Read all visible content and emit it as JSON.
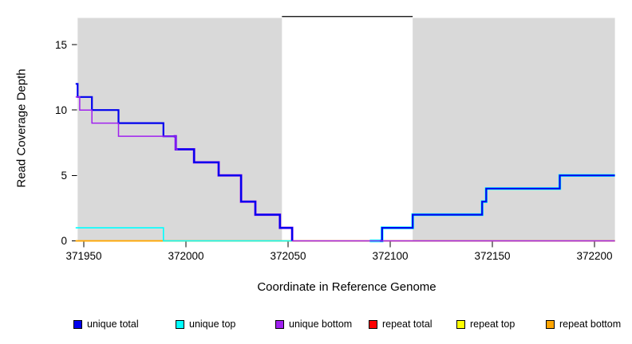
{
  "y_axis": {
    "label": "Read Coverage Depth",
    "ticks": [
      0,
      5,
      10,
      15
    ]
  },
  "x_axis": {
    "label": "Coordinate in Reference Genome",
    "ticks": [
      371950,
      372000,
      372050,
      372100,
      372150,
      372200
    ]
  },
  "legend": {
    "items": [
      {
        "label": "unique total",
        "color": "#0000EE"
      },
      {
        "label": "unique top",
        "color": "#00FFFF"
      },
      {
        "label": "unique bottom",
        "color": "#A020F0"
      },
      {
        "label": "repeat total",
        "color": "#FF0000"
      },
      {
        "label": "repeat top",
        "color": "#FFFF00"
      },
      {
        "label": "repeat bottom",
        "color": "#FFA500"
      }
    ]
  },
  "chart_data": {
    "type": "step",
    "title": "",
    "xlabel": "Coordinate in Reference Genome",
    "ylabel": "Read Coverage Depth",
    "x_range": [
      371946,
      372210
    ],
    "y_range": [
      0,
      17.2
    ],
    "x_ticks": [
      371950,
      372000,
      372050,
      372100,
      372150,
      372200
    ],
    "y_ticks": [
      0,
      5,
      10,
      15
    ],
    "grid": false,
    "legend_position": "bottom",
    "background_color": "#FFFFFF",
    "shaded_color": "#D9D9D9",
    "shaded_regions": [
      [
        371947,
        372047
      ],
      [
        372111,
        372210
      ]
    ],
    "gap_marker": {
      "from": 372047,
      "to": 372111,
      "y": 17.15,
      "color": "#000000"
    },
    "series": [
      {
        "name": "unique total",
        "color": "#0000EE",
        "end": 372210,
        "steps": [
          [
            371946,
            12
          ],
          [
            371947,
            11
          ],
          [
            371954,
            10
          ],
          [
            371967,
            9
          ],
          [
            371989,
            8
          ],
          [
            371995,
            7
          ],
          [
            372004,
            6
          ],
          [
            372016,
            5
          ],
          [
            372027,
            3
          ],
          [
            372034,
            2
          ],
          [
            372046,
            1
          ],
          [
            372052,
            0
          ],
          [
            372096,
            1
          ],
          [
            372111,
            2
          ],
          [
            372145,
            3
          ],
          [
            372147,
            4
          ],
          [
            372183,
            5
          ]
        ]
      },
      {
        "name": "unique top",
        "color": "#00FFFF",
        "end": 372210,
        "steps": [
          [
            371946,
            1
          ],
          [
            371989,
            0
          ],
          [
            372096,
            1
          ],
          [
            372111,
            2
          ],
          [
            372145,
            3
          ],
          [
            372147,
            4
          ],
          [
            372183,
            5
          ]
        ]
      },
      {
        "name": "unique bottom",
        "color": "#A020F0",
        "end": 372210,
        "steps": [
          [
            371946,
            11
          ],
          [
            371948,
            10
          ],
          [
            371954,
            9
          ],
          [
            371967,
            8
          ],
          [
            371995,
            7
          ],
          [
            372004,
            6
          ],
          [
            372016,
            5
          ],
          [
            372027,
            3
          ],
          [
            372034,
            2
          ],
          [
            372046,
            1
          ],
          [
            372052,
            0
          ]
        ]
      },
      {
        "name": "repeat total",
        "color": "#FF0000",
        "end": 372210,
        "steps": [
          [
            371946,
            0
          ]
        ]
      },
      {
        "name": "repeat top",
        "color": "#FFFF00",
        "end": 372210,
        "steps": [
          [
            371946,
            0
          ]
        ]
      },
      {
        "name": "repeat bottom",
        "color": "#FFA500",
        "end": 372210,
        "steps": [
          [
            371946,
            0
          ]
        ]
      }
    ]
  }
}
